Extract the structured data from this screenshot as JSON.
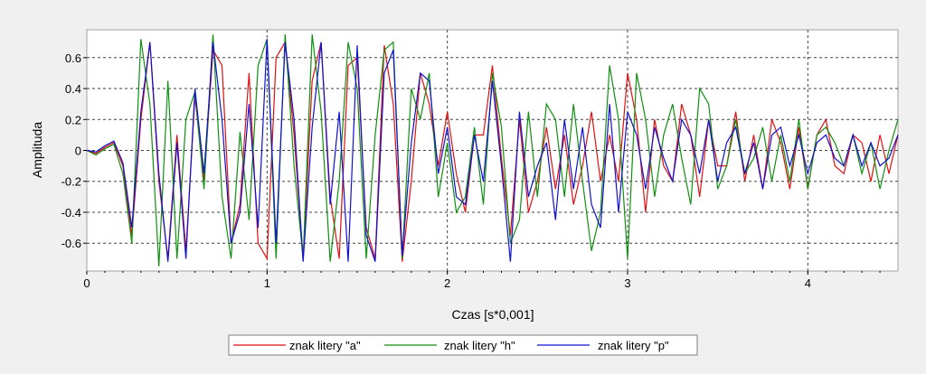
{
  "chart_data": {
    "type": "line",
    "title": "",
    "xlabel": "Czas [s*0,001]",
    "ylabel": "Amplituda",
    "xlim": [
      0,
      4.5
    ],
    "ylim": [
      -0.78,
      0.78
    ],
    "x_ticks": [
      0,
      1,
      2,
      3,
      4
    ],
    "x_tick_labels": [
      "0",
      "1",
      "2",
      "3",
      "4"
    ],
    "y_ticks": [
      0.6,
      0.4,
      0.2,
      0,
      -0.2,
      -0.4,
      -0.6
    ],
    "y_tick_labels": [
      "0.6",
      "0.4",
      "0.2",
      "0",
      "-0.2",
      "-0.4",
      "-0.6"
    ],
    "grid": true,
    "legend_position": "bottom-center",
    "series": [
      {
        "name": "znak litery \"a\"",
        "color": "#e01010",
        "x": [
          0,
          0.05,
          0.1,
          0.15,
          0.2,
          0.25,
          0.3,
          0.35,
          0.4,
          0.45,
          0.5,
          0.55,
          0.6,
          0.65,
          0.7,
          0.75,
          0.8,
          0.85,
          0.9,
          0.95,
          1,
          1.05,
          1.1,
          1.15,
          1.2,
          1.25,
          1.3,
          1.35,
          1.4,
          1.45,
          1.5,
          1.55,
          1.6,
          1.65,
          1.7,
          1.75,
          1.8,
          1.85,
          1.9,
          1.95,
          2,
          2.05,
          2.1,
          2.15,
          2.2,
          2.25,
          2.3,
          2.35,
          2.4,
          2.45,
          2.5,
          2.55,
          2.6,
          2.65,
          2.7,
          2.75,
          2.8,
          2.85,
          2.9,
          2.95,
          3,
          3.05,
          3.1,
          3.15,
          3.2,
          3.25,
          3.3,
          3.35,
          3.4,
          3.45,
          3.5,
          3.55,
          3.6,
          3.65,
          3.7,
          3.75,
          3.8,
          3.85,
          3.9,
          3.95,
          4,
          4.05,
          4.1,
          4.15,
          4.2,
          4.25,
          4.3,
          4.35,
          4.4,
          4.45,
          4.5
        ],
        "values": [
          0,
          -0.02,
          0.02,
          0.05,
          -0.1,
          -0.55,
          0.2,
          0.7,
          -0.2,
          -0.7,
          0.1,
          -0.65,
          0.35,
          -0.2,
          0.65,
          0.55,
          -0.6,
          -0.35,
          0.5,
          -0.6,
          -0.7,
          0.6,
          0.7,
          0.1,
          -0.7,
          0.45,
          0.7,
          -0.3,
          -0.7,
          0.55,
          0.6,
          -0.5,
          -0.7,
          0.68,
          0.3,
          -0.72,
          -0.2,
          0.5,
          0.3,
          -0.1,
          0.25,
          -0.15,
          -0.4,
          0.1,
          0.1,
          0.55,
          -0.05,
          -0.55,
          0.2,
          -0.4,
          -0.2,
          0.15,
          -0.25,
          0.1,
          -0.35,
          -0.1,
          0.25,
          -0.2,
          0.1,
          -0.2,
          0.5,
          0.2,
          -0.4,
          0.2,
          -0.1,
          -0.2,
          0.3,
          0.1,
          -0.3,
          0.2,
          -0.1,
          -0.1,
          0.25,
          -0.2,
          0.1,
          -0.25,
          0.2,
          0.05,
          -0.25,
          0.15,
          -0.25,
          0.1,
          0.2,
          -0.1,
          -0.15,
          0.1,
          0.05,
          -0.2,
          0.1,
          -0.15,
          0.1
        ]
      },
      {
        "name": "znak litery \"h\"",
        "color": "#109010",
        "x": [
          0,
          0.05,
          0.1,
          0.15,
          0.2,
          0.25,
          0.3,
          0.35,
          0.4,
          0.45,
          0.5,
          0.55,
          0.6,
          0.65,
          0.7,
          0.75,
          0.8,
          0.85,
          0.9,
          0.95,
          1,
          1.05,
          1.1,
          1.15,
          1.2,
          1.25,
          1.3,
          1.35,
          1.4,
          1.45,
          1.5,
          1.55,
          1.6,
          1.65,
          1.7,
          1.75,
          1.8,
          1.85,
          1.9,
          1.95,
          2,
          2.05,
          2.1,
          2.15,
          2.2,
          2.25,
          2.3,
          2.35,
          2.4,
          2.45,
          2.5,
          2.55,
          2.6,
          2.65,
          2.7,
          2.75,
          2.8,
          2.85,
          2.9,
          2.95,
          3,
          3.05,
          3.1,
          3.15,
          3.2,
          3.25,
          3.3,
          3.35,
          3.4,
          3.45,
          3.5,
          3.55,
          3.6,
          3.65,
          3.7,
          3.75,
          3.8,
          3.85,
          3.9,
          3.95,
          4,
          4.05,
          4.1,
          4.15,
          4.2,
          4.25,
          4.3,
          4.35,
          4.4,
          4.45,
          4.5
        ],
        "values": [
          0,
          -0.03,
          0.01,
          0.04,
          -0.15,
          -0.6,
          0.72,
          0.3,
          -0.75,
          0.45,
          -0.7,
          0.2,
          0.38,
          -0.25,
          0.75,
          -0.3,
          -0.7,
          0.12,
          -0.45,
          0.55,
          0.72,
          -0.7,
          0.75,
          -0.1,
          -0.7,
          0.75,
          0.25,
          -0.72,
          -0.2,
          0.7,
          0.4,
          -0.7,
          0.1,
          0.65,
          0.7,
          -0.7,
          0.4,
          0.2,
          0.5,
          -0.3,
          0.05,
          -0.4,
          -0.3,
          0.15,
          -0.35,
          0.5,
          0.15,
          -0.6,
          -0.45,
          0.25,
          -0.3,
          0.3,
          0.2,
          -0.3,
          0.3,
          -0.2,
          -0.65,
          -0.4,
          0.55,
          0.2,
          -0.7,
          0.5,
          0.2,
          -0.3,
          0.1,
          0.3,
          -0.05,
          -0.35,
          0.4,
          0.3,
          -0.25,
          -0.1,
          0.2,
          -0.15,
          -0.05,
          0.15,
          -0.2,
          0.1,
          -0.2,
          0.2,
          -0.25,
          0.1,
          0.15,
          0.05,
          -0.1,
          0.1,
          -0.15,
          0.05,
          -0.25,
          0,
          0.2
        ]
      },
      {
        "name": "znak litery \"p\"",
        "color": "#1010d0",
        "x": [
          0,
          0.05,
          0.1,
          0.15,
          0.2,
          0.25,
          0.3,
          0.35,
          0.4,
          0.45,
          0.5,
          0.55,
          0.6,
          0.65,
          0.7,
          0.75,
          0.8,
          0.85,
          0.9,
          0.95,
          1,
          1.05,
          1.1,
          1.15,
          1.2,
          1.25,
          1.3,
          1.35,
          1.4,
          1.45,
          1.5,
          1.55,
          1.6,
          1.65,
          1.7,
          1.75,
          1.8,
          1.85,
          1.9,
          1.95,
          2,
          2.05,
          2.1,
          2.15,
          2.2,
          2.25,
          2.3,
          2.35,
          2.4,
          2.45,
          2.5,
          2.55,
          2.6,
          2.65,
          2.7,
          2.75,
          2.8,
          2.85,
          2.9,
          2.95,
          3,
          3.05,
          3.1,
          3.15,
          3.2,
          3.25,
          3.3,
          3.35,
          3.4,
          3.45,
          3.5,
          3.55,
          3.6,
          3.65,
          3.7,
          3.75,
          3.8,
          3.85,
          3.9,
          3.95,
          4,
          4.05,
          4.1,
          4.15,
          4.2,
          4.25,
          4.3,
          4.35,
          4.4,
          4.45,
          4.5
        ],
        "values": [
          0,
          -0.01,
          0.03,
          0.06,
          -0.08,
          -0.5,
          0.25,
          0.7,
          -0.15,
          -0.72,
          0.05,
          -0.7,
          0.4,
          -0.15,
          0.7,
          0.2,
          -0.6,
          -0.4,
          0.3,
          -0.5,
          0.72,
          -0.6,
          0.7,
          0.2,
          -0.72,
          0.15,
          0.7,
          -0.35,
          0.25,
          -0.72,
          0.68,
          -0.55,
          -0.72,
          0.5,
          0.65,
          -0.68,
          0.05,
          0.5,
          0.45,
          -0.15,
          0.15,
          -0.3,
          -0.35,
          0.1,
          -0.2,
          0.45,
          -0.1,
          -0.72,
          0.25,
          -0.3,
          -0.1,
          0.05,
          -0.45,
          0.2,
          -0.25,
          0.15,
          -0.35,
          -0.5,
          0.3,
          -0.4,
          0.25,
          0.1,
          -0.25,
          0.15,
          -0.05,
          -0.2,
          0.2,
          0.1,
          -0.15,
          0.2,
          -0.2,
          0.05,
          0.15,
          -0.15,
          0.05,
          -0.25,
          0.1,
          0.15,
          -0.1,
          0.1,
          -0.15,
          0.05,
          0.1,
          -0.05,
          -0.1,
          0.1,
          -0.1,
          0.05,
          -0.1,
          -0.05,
          0.1
        ]
      }
    ]
  }
}
